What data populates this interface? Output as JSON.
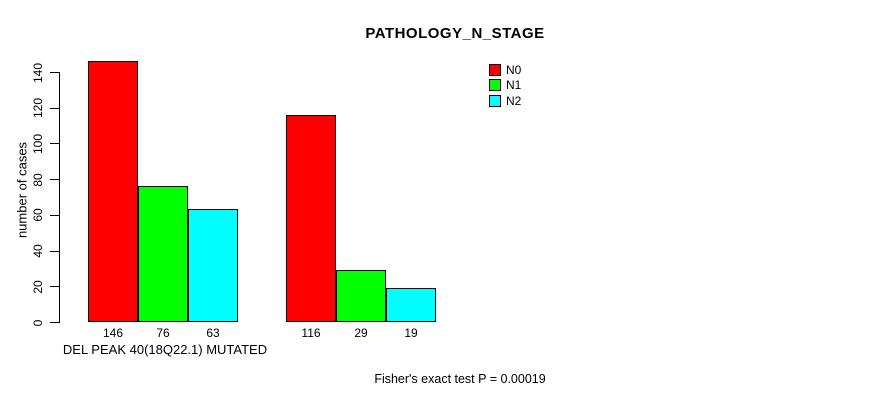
{
  "chart_data": {
    "type": "bar",
    "title": "PATHOLOGY_N_STAGE",
    "ylabel": "number of cases",
    "xlabel": "DEL PEAK 40(18Q22.1) MUTATED",
    "footnote": "Fisher's exact test P = 0.00019",
    "ylim": [
      0,
      140
    ],
    "yticks": [
      0,
      20,
      40,
      60,
      80,
      100,
      120,
      140
    ],
    "grid": false,
    "legend_position": "top-right",
    "group_count": 2,
    "series": [
      {
        "name": "N0",
        "color": "#ff0000",
        "values": [
          146,
          116
        ]
      },
      {
        "name": "N1",
        "color": "#00ff00",
        "values": [
          76,
          29
        ]
      },
      {
        "name": "N2",
        "color": "#00ffff",
        "values": [
          63,
          19
        ]
      }
    ],
    "bar_value_labels": [
      [
        146,
        76,
        63
      ],
      [
        116,
        29,
        19
      ]
    ]
  }
}
